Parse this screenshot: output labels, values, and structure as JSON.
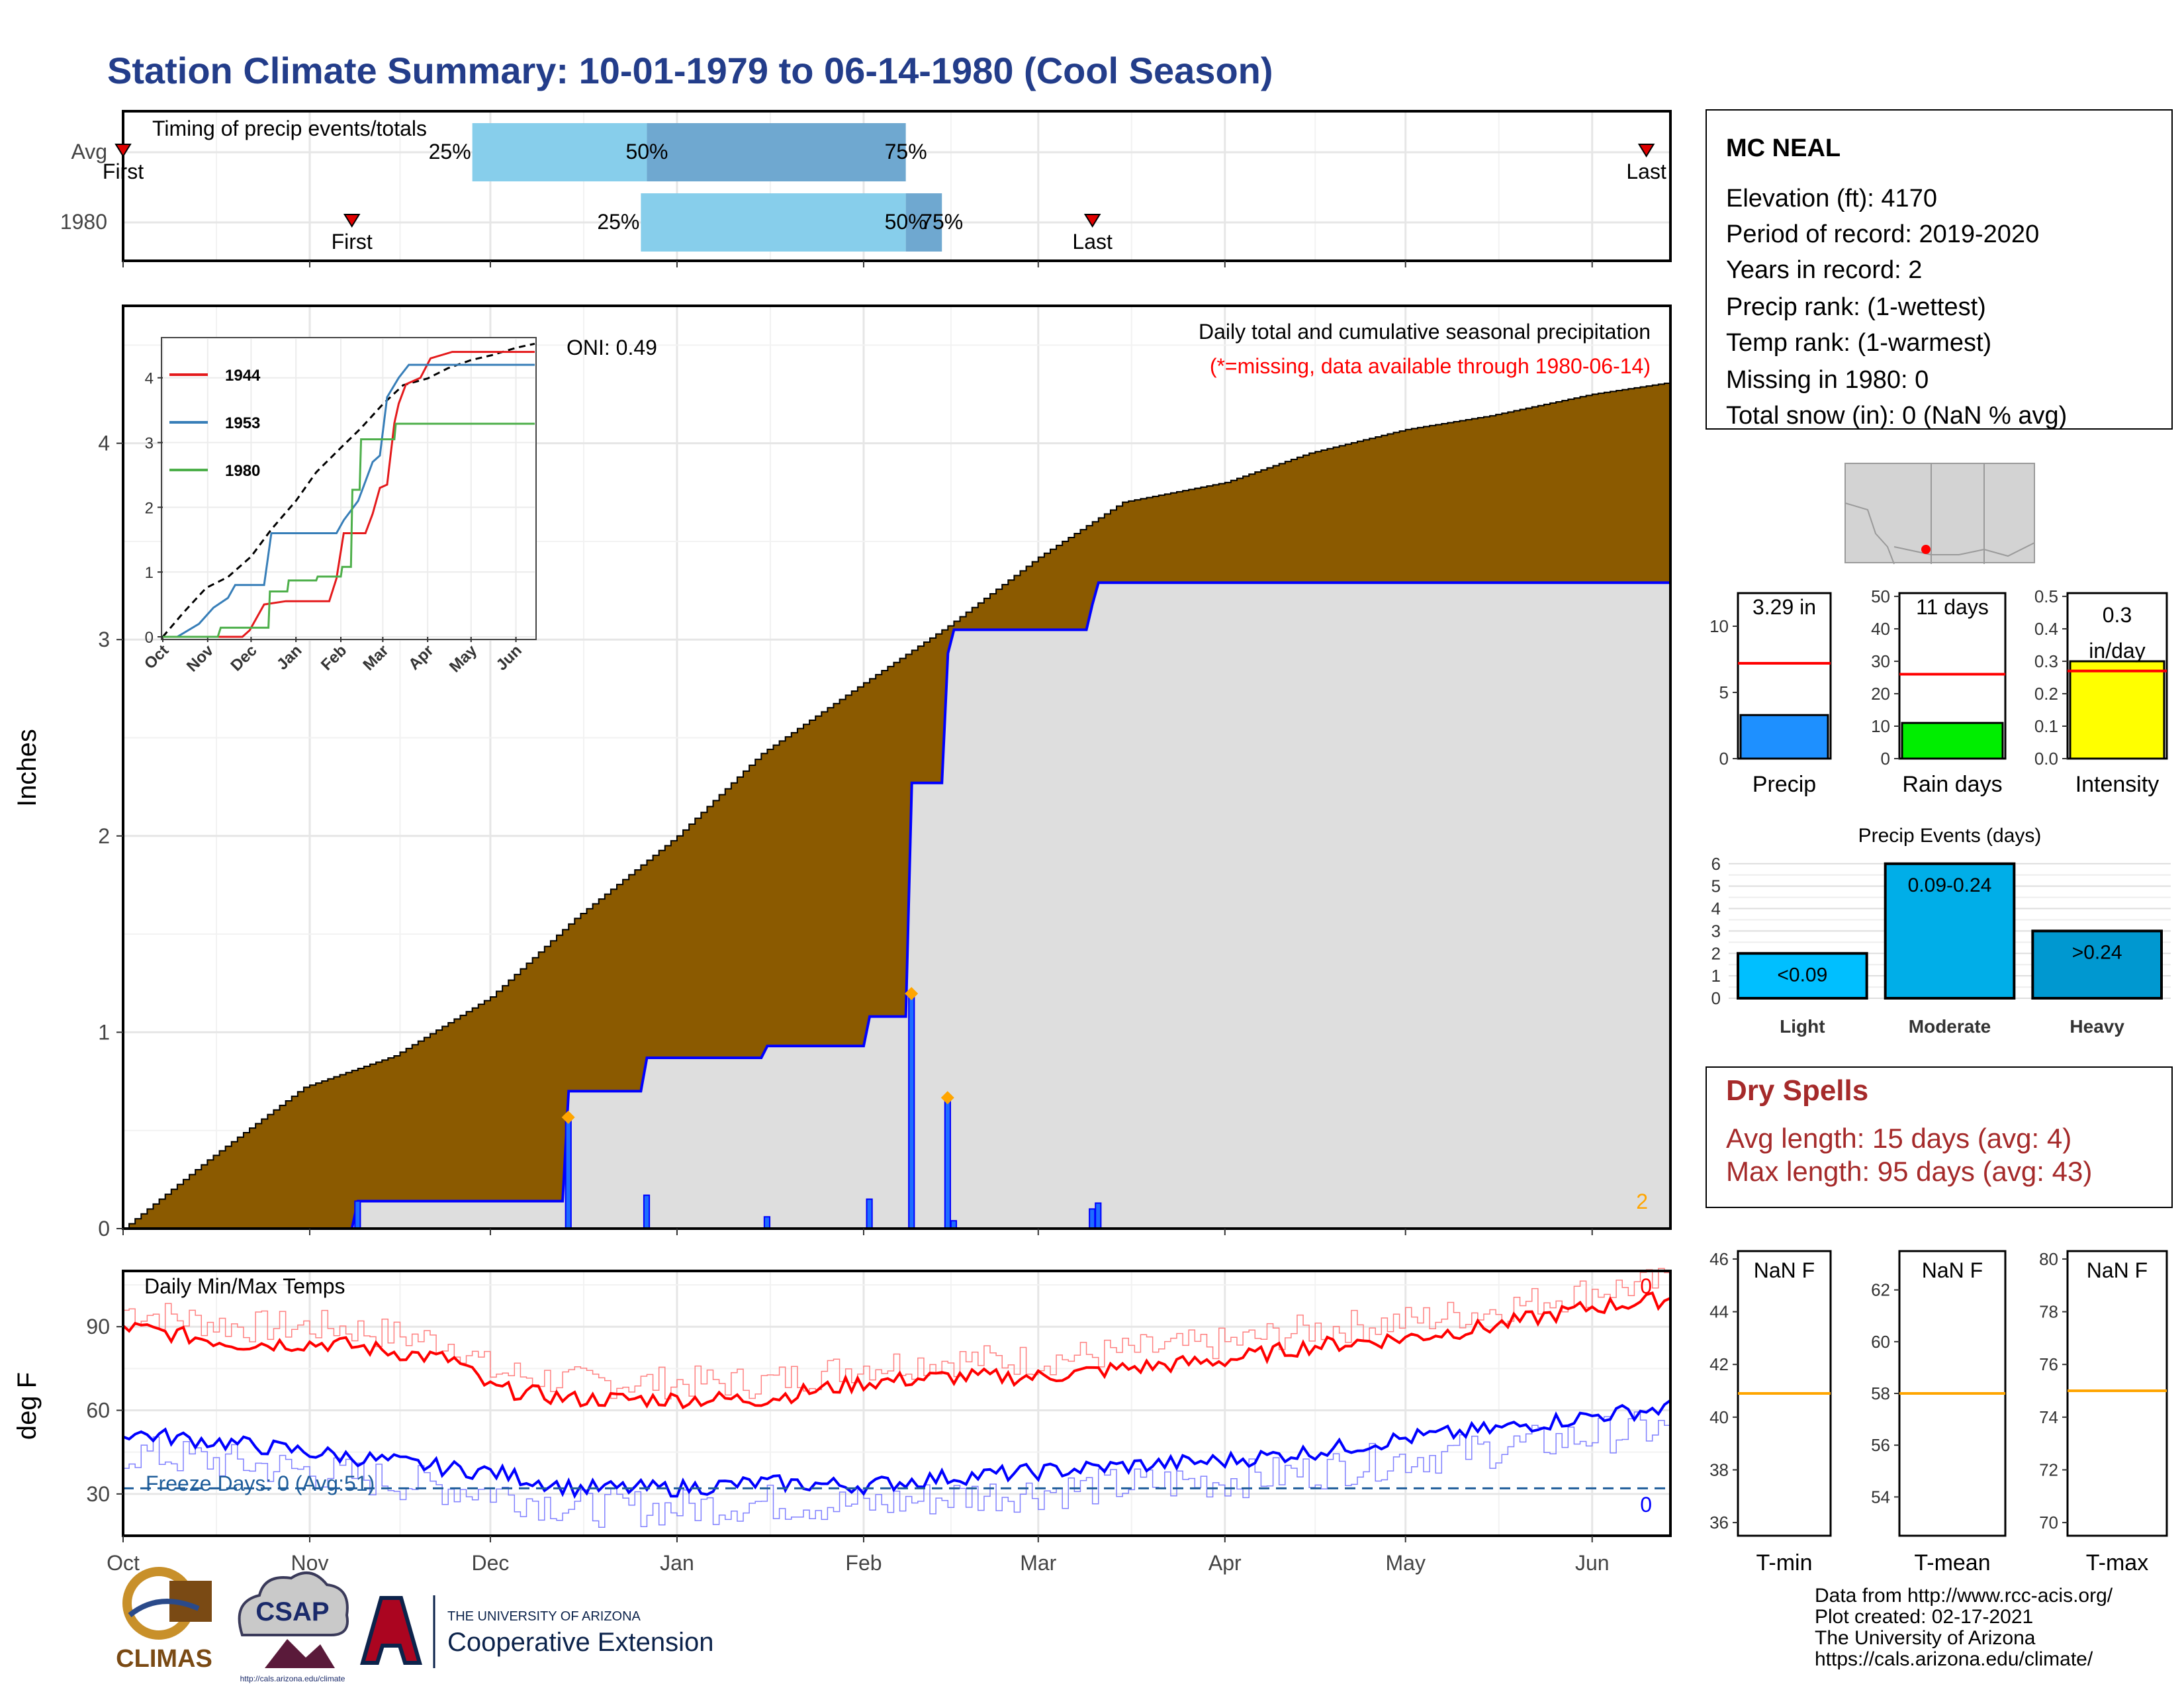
{
  "title": "Station Climate Summary: 10-01-1979 to 06-14-1980 (Cool Season)",
  "timing": {
    "label": "Timing of precip events/totals",
    "rows": [
      {
        "name": "Avg",
        "first": "Oct 1",
        "p25": "Nov 28",
        "p50": "Dec 27",
        "p75": "Feb 8",
        "last": "Jun 10",
        "first_label": "First",
        "last_label": "Last",
        "p25_label": "25%",
        "p50_label": "50%",
        "p75_label": "75%"
      },
      {
        "name": "1980",
        "first": "Nov 8",
        "p25": "Dec 26",
        "p50": "Feb 8",
        "p75": "Feb 14",
        "last": "Mar 10",
        "first_label": "First",
        "last_label": "Last",
        "p25_label": "25%",
        "p50_label": "50%",
        "p75_label": "75%"
      }
    ]
  },
  "precip_panel": {
    "title": "Daily total and cumulative seasonal precipitation",
    "subtitle": "(*=missing, data available through 1980-06-14)",
    "oni": "ONI: 0.49",
    "ylabel": "Inches",
    "yticks": [
      "0",
      "1",
      "2",
      "3",
      "4"
    ],
    "corner_count": "2"
  },
  "inset": {
    "legend": [
      "1944",
      "1953",
      "1980"
    ],
    "yticks": [
      "0",
      "1",
      "2",
      "3",
      "4"
    ],
    "xticks": [
      "Oct",
      "Nov",
      "Dec",
      "Jan",
      "Feb",
      "Mar",
      "Apr",
      "May",
      "Jun"
    ]
  },
  "temp_panel": {
    "title": "Daily Min/Max Temps",
    "ylabel": "deg F",
    "yticks": [
      "30",
      "60",
      "90"
    ],
    "freeze": "Freeze Days: 0 (Avg:51)",
    "max_count": "0",
    "min_count": "0"
  },
  "x_months": [
    "Oct",
    "Nov",
    "Dec",
    "Jan",
    "Feb",
    "Mar",
    "Apr",
    "May",
    "Jun"
  ],
  "station": {
    "name": "MC NEAL",
    "lines": [
      "Elevation (ft): 4170",
      "Period of record: 2019-2020",
      "Years in record: 2",
      "Precip rank:  (1-wettest)",
      "Temp rank:  (1-warmest)",
      "Missing in 1980: 0",
      "Total snow (in): 0 (NaN % avg)"
    ]
  },
  "mini_bars": [
    {
      "label": "Precip",
      "value_text": "3.29 in",
      "yticks": [
        "0",
        "5",
        "10"
      ],
      "color": "#1e90ff"
    },
    {
      "label": "Rain days",
      "value_text": "11 days",
      "yticks": [
        "0",
        "10",
        "20",
        "30",
        "40",
        "50"
      ],
      "color": "#00ee00"
    },
    {
      "label": "Intensity",
      "value_text": "0.3 in/day",
      "value_line1": "0.3",
      "value_line2": "in/day",
      "yticks": [
        "0.0",
        "0.1",
        "0.2",
        "0.3",
        "0.4",
        "0.5"
      ],
      "color": "#ffff00"
    }
  ],
  "events": {
    "title": "Precip Events (days)",
    "categories": [
      "Light",
      "Moderate",
      "Heavy"
    ],
    "bar_labels": [
      "<0.09",
      "0.09-0.24",
      ">0.24"
    ],
    "yticks": [
      "0",
      "1",
      "2",
      "3",
      "4",
      "5",
      "6"
    ]
  },
  "dry_spells": {
    "title": "Dry Spells",
    "avg": "Avg length: 15 days (avg: 4)",
    "max": "Max length: 95 days (avg: 43)"
  },
  "temp_boxes": [
    {
      "label": "T-min",
      "value_text": "NaN F",
      "yticks": [
        "36",
        "38",
        "40",
        "42",
        "44",
        "46"
      ]
    },
    {
      "label": "T-mean",
      "value_text": "NaN F",
      "yticks": [
        "54",
        "56",
        "58",
        "60",
        "62"
      ]
    },
    {
      "label": "T-max",
      "value_text": "NaN F",
      "yticks": [
        "70",
        "72",
        "74",
        "76",
        "78",
        "80"
      ]
    }
  ],
  "footer": {
    "lines": [
      "Data from http://www.rcc-acis.org/",
      "Plot created: 02-17-2021",
      "The University of Arizona",
      "https://cals.arizona.edu/climate/"
    ],
    "logo_climas": "CLIMAS",
    "logo_csap": "CSAP",
    "logo_csap_url": "http://cals.arizona.edu/climate",
    "ua_line1": "THE UNIVERSITY OF ARIZONA",
    "ua_line2": "Cooperative Extension"
  },
  "colors": {
    "title": "#233d8a",
    "cumulative_fill": "#8b5a00",
    "precip_line": "#0000ff",
    "dry_spell": "#a52a2a",
    "max_temp": "#ff0000",
    "min_temp": "#0000ff",
    "avg_line": "#ffa500"
  },
  "chart_data": [
    {
      "type": "area",
      "title": "Daily total and cumulative seasonal precipitation",
      "ylabel": "Inches",
      "ylim": [
        0,
        4.7
      ],
      "x_range": [
        "1979-10-01",
        "1980-06-14"
      ],
      "series": [
        {
          "name": "average cumulative",
          "points": [
            [
              "1979-10-01",
              0.0
            ],
            [
              "1979-10-15",
              0.35
            ],
            [
              "1979-10-31",
              0.72
            ],
            [
              "1979-11-15",
              0.88
            ],
            [
              "1979-12-01",
              1.18
            ],
            [
              "1979-12-15",
              1.58
            ],
            [
              "1980-01-01",
              2.0
            ],
            [
              "1980-01-15",
              2.42
            ],
            [
              "1980-02-01",
              2.78
            ],
            [
              "1980-02-15",
              3.07
            ],
            [
              "1980-03-01",
              3.42
            ],
            [
              "1980-03-15",
              3.7
            ],
            [
              "1980-04-01",
              3.8
            ],
            [
              "1980-04-15",
              3.95
            ],
            [
              "1980-05-01",
              4.07
            ],
            [
              "1980-05-15",
              4.14
            ],
            [
              "1980-06-01",
              4.25
            ],
            [
              "1980-06-14",
              4.31
            ]
          ]
        },
        {
          "name": "1980 cumulative",
          "points": [
            [
              "1979-10-01",
              0.0
            ],
            [
              "1979-11-08",
              0.0
            ],
            [
              "1979-11-09",
              0.14
            ],
            [
              "1979-12-13",
              0.14
            ],
            [
              "1979-12-14",
              0.7
            ],
            [
              "1979-12-26",
              0.7
            ],
            [
              "1979-12-27",
              0.87
            ],
            [
              "1980-01-15",
              0.87
            ],
            [
              "1980-01-16",
              0.93
            ],
            [
              "1980-02-01",
              0.93
            ],
            [
              "1980-02-02",
              1.08
            ],
            [
              "1980-02-08",
              1.08
            ],
            [
              "1980-02-09",
              2.27
            ],
            [
              "1980-02-14",
              2.27
            ],
            [
              "1980-02-15",
              2.93
            ],
            [
              "1980-02-16",
              3.05
            ],
            [
              "1980-03-09",
              3.05
            ],
            [
              "1980-03-10",
              3.18
            ],
            [
              "1980-03-11",
              3.29
            ],
            [
              "1980-06-14",
              3.29
            ]
          ]
        }
      ],
      "daily_precip": [
        [
          "1979-11-08",
          0.14
        ],
        [
          "1979-12-13",
          0.56
        ],
        [
          "1979-12-26",
          0.17
        ],
        [
          "1980-01-15",
          0.06
        ],
        [
          "1980-02-01",
          0.15
        ],
        [
          "1980-02-08",
          1.19
        ],
        [
          "1980-02-14",
          0.66
        ],
        [
          "1980-02-15",
          0.04
        ],
        [
          "1980-03-09",
          0.1
        ],
        [
          "1980-03-10",
          0.13
        ]
      ]
    },
    {
      "type": "line",
      "title": "Daily Min/Max Temps",
      "ylabel": "deg F",
      "ylim": [
        15,
        110
      ],
      "series": [
        {
          "name": "Max",
          "points": [
            [
              "1979-10-01",
              90
            ],
            [
              "1979-10-20",
              84
            ],
            [
              "1979-11-05",
              84
            ],
            [
              "1979-11-25",
              78
            ],
            [
              "1979-12-01",
              68
            ],
            [
              "1979-12-15",
              64
            ],
            [
              "1980-01-01",
              64
            ],
            [
              "1980-01-15",
              64
            ],
            [
              "1980-02-01",
              70
            ],
            [
              "1980-02-15",
              72
            ],
            [
              "1980-03-01",
              72
            ],
            [
              "1980-03-15",
              75
            ],
            [
              "1980-04-01",
              78
            ],
            [
              "1980-04-15",
              83
            ],
            [
              "1980-05-01",
              86
            ],
            [
              "1980-05-15",
              90
            ],
            [
              "1980-06-01",
              97
            ],
            [
              "1980-06-14",
              100
            ]
          ]
        },
        {
          "name": "Min",
          "points": [
            [
              "1979-10-01",
              52
            ],
            [
              "1979-10-20",
              48
            ],
            [
              "1979-11-05",
              44
            ],
            [
              "1979-11-25",
              39
            ],
            [
              "1979-12-01",
              38
            ],
            [
              "1979-12-15",
              32
            ],
            [
              "1980-01-01",
              32
            ],
            [
              "1980-01-15",
              34
            ],
            [
              "1980-02-01",
              33
            ],
            [
              "1980-02-15",
              36
            ],
            [
              "1980-03-01",
              38
            ],
            [
              "1980-03-15",
              40
            ],
            [
              "1980-04-01",
              42
            ],
            [
              "1980-04-15",
              45
            ],
            [
              "1980-05-01",
              50
            ],
            [
              "1980-05-15",
              53
            ],
            [
              "1980-06-01",
              58
            ],
            [
              "1980-06-14",
              61
            ]
          ]
        }
      ]
    },
    {
      "type": "bar",
      "title": "Precip Events (days)",
      "categories": [
        "Light",
        "Moderate",
        "Heavy"
      ],
      "values": [
        2,
        6,
        3
      ],
      "ylim": [
        0,
        6.2
      ]
    },
    {
      "type": "bar",
      "categories": [
        "Precip",
        "Rain days",
        "Intensity"
      ],
      "series": [
        {
          "name": "1980",
          "values": [
            3.29,
            11,
            0.3
          ]
        },
        {
          "name": "average",
          "values": [
            7.2,
            26,
            0.27
          ]
        }
      ]
    }
  ]
}
